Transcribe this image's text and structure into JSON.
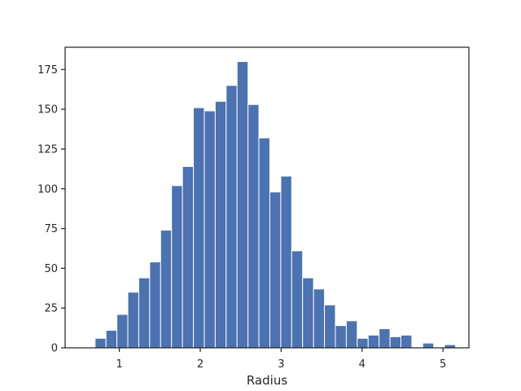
{
  "chart_data": {
    "type": "bar",
    "subtype": "histogram",
    "title": "",
    "xlabel": "Radius",
    "ylabel": "",
    "xlim": [
      0.33,
      5.32
    ],
    "ylim": [
      0,
      189
    ],
    "xticks": [
      1,
      2,
      3,
      4,
      5
    ],
    "yticks": [
      0,
      25,
      50,
      75,
      100,
      125,
      150,
      175
    ],
    "grid": false,
    "bar_color": "#4c72b0",
    "bin_edges": [
      0.7,
      0.835,
      0.97,
      1.105,
      1.24,
      1.375,
      1.51,
      1.645,
      1.78,
      1.915,
      2.05,
      2.185,
      2.32,
      2.455,
      2.59,
      2.725,
      2.86,
      2.995,
      3.13,
      3.265,
      3.4,
      3.535,
      3.67,
      3.805,
      3.94,
      4.075,
      4.21,
      4.345,
      4.48,
      4.615,
      4.75,
      4.885,
      5.02,
      5.155
    ],
    "values": [
      6,
      11,
      21,
      35,
      44,
      54,
      74,
      102,
      114,
      151,
      149,
      155,
      165,
      180,
      153,
      132,
      98,
      108,
      61,
      44,
      37,
      27,
      14,
      17,
      6,
      8,
      12,
      7,
      8,
      0,
      3,
      0,
      2
    ]
  }
}
